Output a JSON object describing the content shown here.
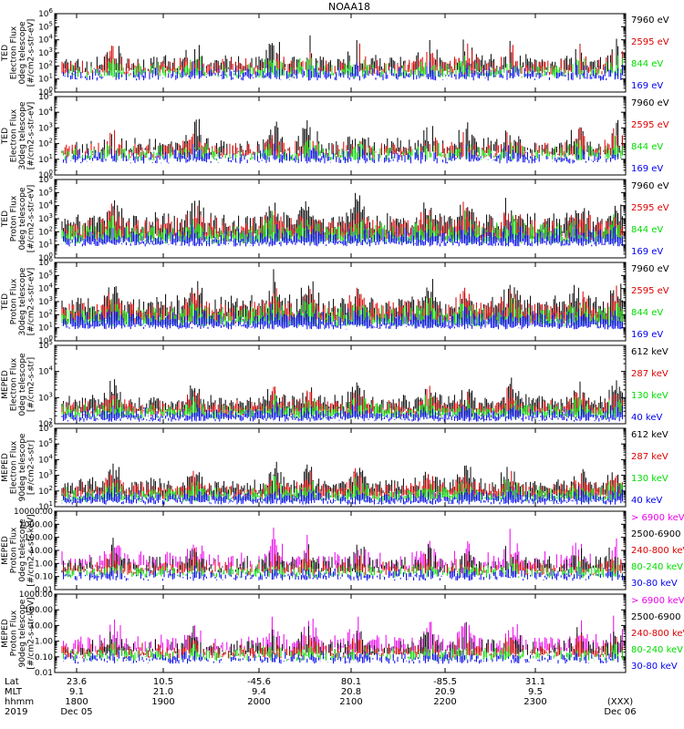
{
  "figure": {
    "title": "NOAA18",
    "footer": {
      "rows": [
        {
          "label": "Lat",
          "values": [
            "23.6",
            "10.5",
            "-45.6",
            "80.1",
            "-85.5",
            "31.1"
          ]
        },
        {
          "label": "MLT",
          "values": [
            "9.1",
            "21.0",
            "9.4",
            "20.8",
            "20.9",
            "9.5"
          ]
        },
        {
          "label": "hhmm",
          "values": [
            "1800",
            "1900",
            "2000",
            "2100",
            "2200",
            "2300"
          ]
        },
        {
          "label": "2019",
          "values": [
            "Dec 05",
            "",
            "",
            "",
            "",
            ""
          ]
        }
      ],
      "end_labels": [
        "(XXX)",
        "Dec 06"
      ]
    }
  },
  "colors": {
    "black": "#000000",
    "red": "#dd0000",
    "green": "#00dd00",
    "blue": "#0000ee",
    "magenta": "#ee00ee"
  },
  "chart_data": [
    {
      "type": "line",
      "log_y": true,
      "ylabel": [
        "TED",
        "Electron Flux",
        "0deg telescope",
        "[#/cm2-s-str-eV]"
      ],
      "yticks": [
        "10^0",
        "10^1",
        "10^2",
        "10^3",
        "10^4",
        "10^5",
        "10^6"
      ],
      "ylim": [
        1,
        1000000
      ],
      "x_range_hhmm": [
        "1730",
        "2400"
      ],
      "series": [
        {
          "name": "7960 eV",
          "color": "black"
        },
        {
          "name": "2595 eV",
          "color": "red"
        },
        {
          "name": "844 eV",
          "color": "green"
        },
        {
          "name": "169 eV",
          "color": "blue"
        }
      ]
    },
    {
      "type": "line",
      "log_y": true,
      "ylabel": [
        "TED",
        "Electron Flux",
        "30deg telescope",
        "[#/cm2-s-str-eV]"
      ],
      "yticks": [
        "10^0",
        "10^1",
        "10^2",
        "10^3",
        "10^4",
        "10^5"
      ],
      "ylim": [
        1,
        100000
      ],
      "series": [
        {
          "name": "7960 eV",
          "color": "black"
        },
        {
          "name": "2595 eV",
          "color": "red"
        },
        {
          "name": "844 eV",
          "color": "green"
        },
        {
          "name": "169 eV",
          "color": "blue"
        }
      ]
    },
    {
      "type": "line",
      "log_y": true,
      "ylabel": [
        "TED",
        "Proton Flux",
        "0deg telescope",
        "[#/cm2-s-str-eV]"
      ],
      "yticks": [
        "10^0",
        "10^1",
        "10^2",
        "10^3",
        "10^4",
        "10^5",
        "10^6"
      ],
      "ylim": [
        1,
        1000000
      ],
      "series": [
        {
          "name": "7960 eV",
          "color": "black"
        },
        {
          "name": "2595 eV",
          "color": "red"
        },
        {
          "name": "844 eV",
          "color": "green"
        },
        {
          "name": "169 eV",
          "color": "blue"
        }
      ]
    },
    {
      "type": "line",
      "log_y": true,
      "ylabel": [
        "TED",
        "Proton Flux",
        "30deg telescope",
        "[#/cm2-s-str-eV]"
      ],
      "yticks": [
        "10^0",
        "10^1",
        "10^2",
        "10^3",
        "10^4",
        "10^5",
        "10^6"
      ],
      "ylim": [
        1,
        1000000
      ],
      "series": [
        {
          "name": "7960 eV",
          "color": "black"
        },
        {
          "name": "2595 eV",
          "color": "red"
        },
        {
          "name": "844 eV",
          "color": "green"
        },
        {
          "name": "169 eV",
          "color": "blue"
        }
      ]
    },
    {
      "type": "line",
      "log_y": true,
      "ylabel": [
        "MEPED",
        "Electron Flux",
        "0deg telescope",
        "[#/cm2-s-str]"
      ],
      "yticks": [
        "10^2",
        "10^3",
        "10^4",
        "10^5"
      ],
      "ylim": [
        30,
        100000
      ],
      "series": [
        {
          "name": "612 keV",
          "color": "black"
        },
        {
          "name": "287 keV",
          "color": "red"
        },
        {
          "name": "130 keV",
          "color": "green"
        },
        {
          "name": "40 keV",
          "color": "blue"
        }
      ]
    },
    {
      "type": "line",
      "log_y": true,
      "ylabel": [
        "MEPED",
        "Electron Flux",
        "90deg telescope",
        "[#/cm2-s-str]"
      ],
      "yticks": [
        "10^1",
        "10^2",
        "10^3",
        "10^4",
        "10^5",
        "10^6"
      ],
      "ylim": [
        10,
        1000000
      ],
      "series": [
        {
          "name": "612 keV",
          "color": "black"
        },
        {
          "name": "287 keV",
          "color": "red"
        },
        {
          "name": "130 keV",
          "color": "green"
        },
        {
          "name": "40 keV",
          "color": "blue"
        }
      ]
    },
    {
      "type": "line",
      "log_y": true,
      "ylabel": [
        "MEPED",
        "Proton Flux",
        "0deg telescope",
        "[#/cm2-s-str-keV]"
      ],
      "yticks": [
        "0.01",
        "0.10",
        "1.00",
        "10.00",
        "100.00",
        "1000.00",
        "10000.00"
      ],
      "ylim": [
        0.01,
        10000
      ],
      "series": [
        {
          "name": "> 6900 keV",
          "color": "magenta"
        },
        {
          "name": "2500-6900",
          "color": "black"
        },
        {
          "name": "240-800 keV",
          "color": "red"
        },
        {
          "name": "80-240 keV",
          "color": "green"
        },
        {
          "name": "30-80 keV",
          "color": "blue"
        }
      ]
    },
    {
      "type": "line",
      "log_y": true,
      "ylabel": [
        "MEPED",
        "Proton Flux",
        "90deg telescope",
        "[#/cm2-s-str-keV]"
      ],
      "yticks": [
        "0.01",
        "0.10",
        "1.00",
        "10.00",
        "100.00",
        "1000.00"
      ],
      "ylim": [
        0.01,
        1000
      ],
      "series": [
        {
          "name": "> 6900 keV",
          "color": "magenta"
        },
        {
          "name": "2500-6900",
          "color": "black"
        },
        {
          "name": "240-800 keV",
          "color": "red"
        },
        {
          "name": "80-240 keV",
          "color": "green"
        },
        {
          "name": "30-80 keV",
          "color": "blue"
        }
      ]
    }
  ]
}
